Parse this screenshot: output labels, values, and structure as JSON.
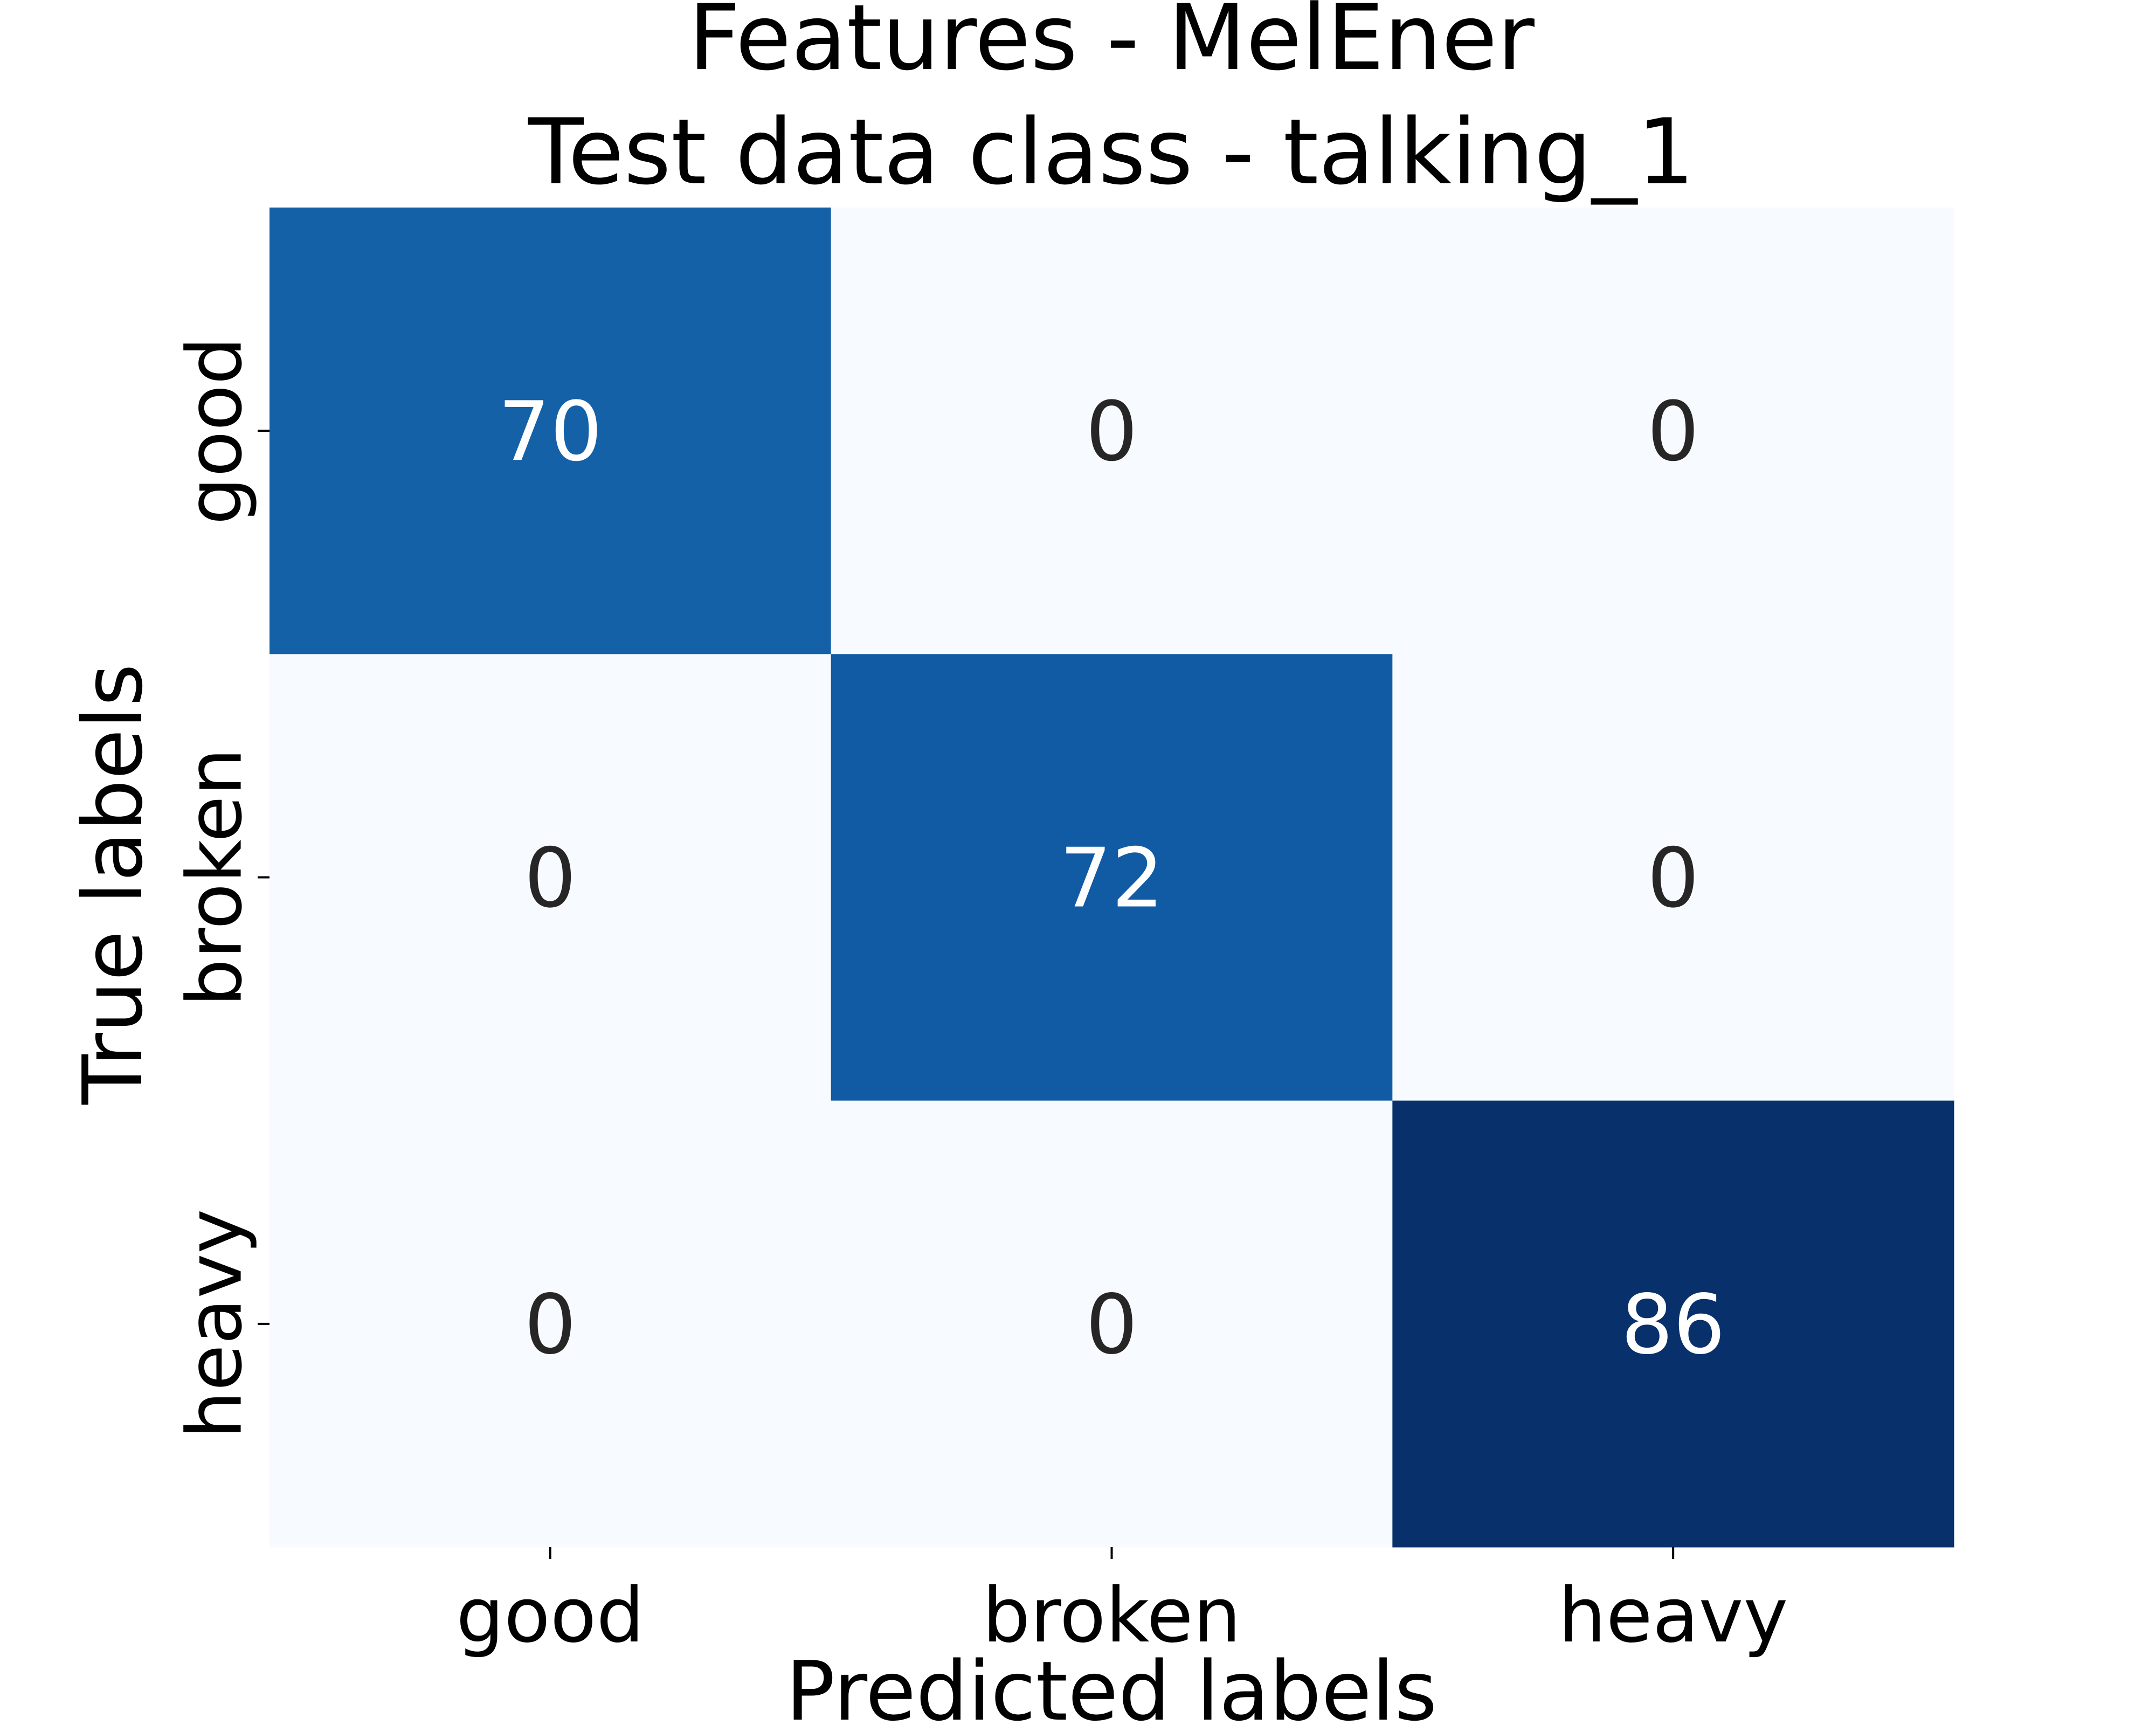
{
  "chart_data": {
    "type": "heatmap",
    "title": [
      "Features - MelEner",
      "Test data class - talking_1"
    ],
    "xlabel": "Predicted labels",
    "ylabel": "True labels",
    "x_categories": [
      "good",
      "broken",
      "heavy"
    ],
    "y_categories": [
      "good",
      "broken",
      "heavy"
    ],
    "values": [
      [
        70,
        0,
        0
      ],
      [
        0,
        72,
        0
      ],
      [
        0,
        0,
        86
      ]
    ],
    "colormap": "Blues",
    "value_range": [
      0,
      86
    ],
    "colorbar": false,
    "grid": false,
    "colors": {
      "low": "#f7fbff",
      "mid": "#6baed6",
      "high": "#08306b",
      "annotation_dark": "#262626",
      "annotation_light": "#ffffff"
    }
  }
}
